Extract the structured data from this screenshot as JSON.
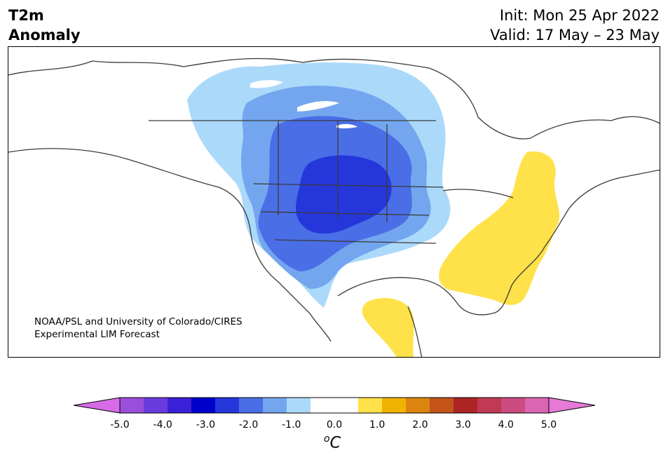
{
  "header": {
    "variable": "T2m",
    "subtitle": "Anomaly",
    "init": "Init: Mon 25 Apr 2022",
    "valid": "Valid: 17 May – 23 May"
  },
  "credit": {
    "line1": "NOAA/PSL and University of Colorado/CIRES",
    "line2": "Experimental LIM Forecast"
  },
  "colorbar": {
    "ticks": [
      "-5.0",
      "-4.0",
      "-3.0",
      "-2.0",
      "-1.0",
      "0.0",
      "1.0",
      "2.0",
      "3.0",
      "4.0",
      "5.0"
    ],
    "unit_sup": "o",
    "unit": "C",
    "colors": [
      "#d66be8",
      "#9a4fdc",
      "#6a3bdc",
      "#3a20d6",
      "#0000cd",
      "#2537db",
      "#4a6ee6",
      "#73a6ee",
      "#abd9fa",
      "#ffffff",
      "#ffffff",
      "#ffe14a",
      "#f0b400",
      "#dc8410",
      "#c4541a",
      "#ad2424",
      "#c03a56",
      "#cc4c80",
      "#db65b0",
      "#e67ad6"
    ]
  }
}
